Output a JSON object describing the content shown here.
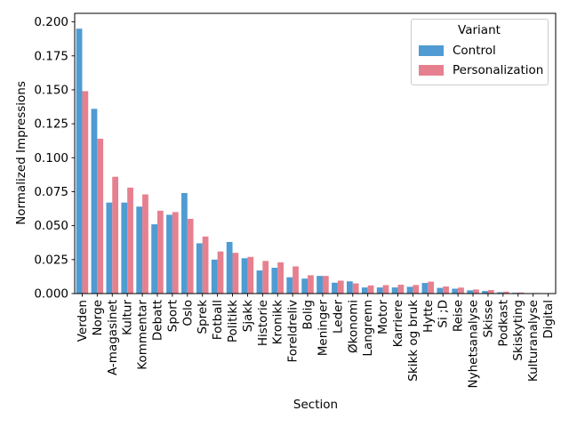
{
  "figure": {
    "background": "#ffffff"
  },
  "chart_data": {
    "type": "bar",
    "title": "",
    "xlabel": "Section",
    "ylabel": "Normalized Impressions",
    "categories": [
      "Verden",
      "Norge",
      "A-magasinet",
      "Kultur",
      "Kommentar",
      "Debatt",
      "Sport",
      "Oslo",
      "Sprek",
      "Fotball",
      "Politikk",
      "Sjakk",
      "Historie",
      "Kronikk",
      "Foreldreliv",
      "Bolig",
      "Meninger",
      "Leder",
      "Økonomi",
      "Langrenn",
      "Motor",
      "Karriere",
      "Skikk og bruk",
      "Hytte",
      "Si ;D",
      "Reise",
      "Nyhetsanalyse",
      "Skisse",
      "Podkast",
      "Skiskyting",
      "Kulturanalyse",
      "Digital"
    ],
    "series": [
      {
        "name": "Control",
        "color": "#4F9BD2",
        "values": [
          0.195,
          0.136,
          0.067,
          0.067,
          0.064,
          0.051,
          0.058,
          0.074,
          0.037,
          0.025,
          0.038,
          0.026,
          0.017,
          0.019,
          0.012,
          0.011,
          0.013,
          0.008,
          0.009,
          0.0045,
          0.0045,
          0.0045,
          0.005,
          0.0078,
          0.0042,
          0.0036,
          0.0024,
          0.0019,
          0.001,
          0.0006,
          0.0003,
          0.0002
        ]
      },
      {
        "name": "Personalization",
        "color": "#E6808F",
        "values": [
          0.149,
          0.114,
          0.086,
          0.078,
          0.073,
          0.061,
          0.06,
          0.055,
          0.042,
          0.031,
          0.03,
          0.027,
          0.024,
          0.023,
          0.02,
          0.0135,
          0.013,
          0.0095,
          0.0075,
          0.006,
          0.0062,
          0.0065,
          0.0063,
          0.0088,
          0.0052,
          0.0044,
          0.003,
          0.0026,
          0.0014,
          0.0008,
          0.0004,
          0.0003
        ]
      }
    ],
    "ylim": [
      0,
      0.2063
    ],
    "yticks": [
      "0.000",
      "0.025",
      "0.050",
      "0.075",
      "0.100",
      "0.125",
      "0.150",
      "0.175",
      "0.200"
    ],
    "grid": false,
    "legend": {
      "title": "Variant",
      "position": "upper-right"
    }
  }
}
